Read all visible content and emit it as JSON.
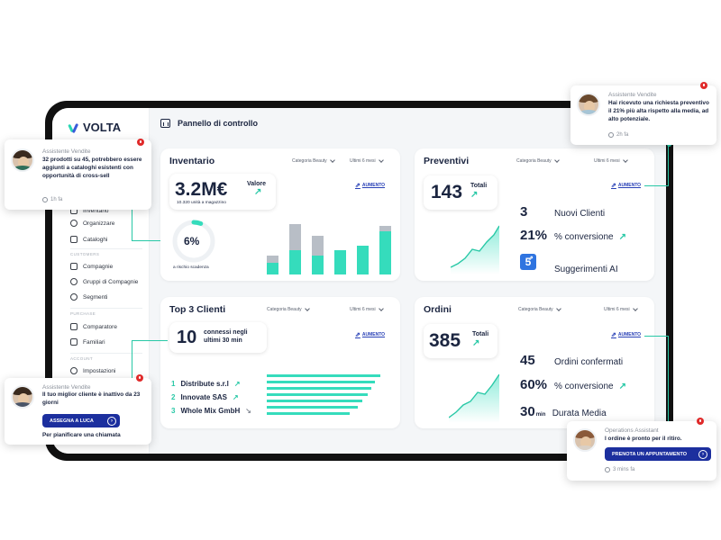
{
  "app": {
    "name": "VOLTA",
    "page_title": "Pannello di controllo"
  },
  "colors": {
    "accent": "#28c8a6",
    "brand_blue": "#1c2f9e",
    "link_blue": "#2840b6",
    "alert_red": "#e02a2a",
    "bar_grey": "#b8bec6"
  },
  "sidebar": {
    "items_top": [
      {
        "label": "Inventario",
        "icon": "box-icon"
      },
      {
        "label": "Organizzare",
        "icon": "people-icon"
      },
      {
        "label": "Cataloghi",
        "icon": "catalog-icon"
      }
    ],
    "group_customers": "CUSTOMERS",
    "items_customers": [
      {
        "label": "Compagnie",
        "icon": "building-icon"
      },
      {
        "label": "Gruppi di Compagnie",
        "icon": "group-icon"
      },
      {
        "label": "Segmenti",
        "icon": "segment-icon"
      }
    ],
    "group_purchase": "PURCHASE",
    "items_purchase": [
      {
        "label": "Comparatore",
        "icon": "compare-icon"
      },
      {
        "label": "Familiari",
        "icon": "family-icon"
      }
    ],
    "group_account": "ACCOUNT",
    "items_account": [
      {
        "label": "Impostazioni",
        "icon": "gear-icon"
      }
    ]
  },
  "inventario": {
    "title": "Inventario",
    "filter_category": "Categoria Beauty",
    "filter_period": "Ultimi 6 mesi",
    "value": "3.2M€",
    "value_label": "Valore",
    "units_label": "10.320 unità a magazzino",
    "trend_label": "AUMENTO",
    "risk_percent": "6%",
    "risk_fraction": 0.06,
    "risk_label": "a rischio scadenza",
    "bars": [
      {
        "total": 22,
        "teal": 13
      },
      {
        "total": 58,
        "teal": 28
      },
      {
        "total": 44,
        "teal": 22
      },
      {
        "total": 28,
        "teal": 28
      },
      {
        "total": 33,
        "teal": 33
      },
      {
        "total": 56,
        "teal": 50
      }
    ]
  },
  "preventivi": {
    "title": "Preventivi",
    "filter_category": "Categoria Beauty",
    "filter_period": "Ultimi 6 mesi",
    "total": "143",
    "total_label": "Totali",
    "trend_label": "AUMENTO",
    "metrics": [
      {
        "value": "3",
        "label": "Nuovi Clienti"
      },
      {
        "value": "21%",
        "label": "% conversione"
      },
      {
        "value": "5",
        "label": "Suggerimenti AI"
      }
    ]
  },
  "top_clienti": {
    "title": "Top 3 Clienti",
    "filter_category": "Categoria Beauty",
    "filter_period": "Ultimi 6 mesi",
    "connected_count": "10",
    "connected_label": "connessi negli ultimi 30 min",
    "trend_label": "AUMENTO",
    "clients": [
      {
        "rank": "1",
        "name": "Distribute s.r.l",
        "trend": "up"
      },
      {
        "rank": "2",
        "name": "Innovate SAS",
        "trend": "up"
      },
      {
        "rank": "3",
        "name": "Whole Mix GmbH",
        "trend": "down"
      }
    ],
    "bar_levels": [
      0.9,
      0.86,
      0.83,
      0.8,
      0.76,
      0.72,
      0.66
    ]
  },
  "ordini": {
    "title": "Ordini",
    "filter_category": "Categoria Beauty",
    "filter_period": "Ultimi 6 mesi",
    "total": "385",
    "total_label": "Totali",
    "trend_label": "AUMENTO",
    "metrics": [
      {
        "value": "45",
        "unit": "",
        "label": "Ordini confermati"
      },
      {
        "value": "60%",
        "unit": "",
        "label": "% conversione"
      },
      {
        "value": "30",
        "unit": "min",
        "label": "Durata Media"
      }
    ]
  },
  "notifications": {
    "left_top": {
      "sender": "Assistente Vendite",
      "message": "32 prodotti su 45, potrebbero essere aggiunti a cataloghi esistenti con opportunità di cross-sell",
      "time": "1h fa"
    },
    "right_top": {
      "sender": "Assistente Vendite",
      "message": "Hai ricevuto una richiesta preventivo il 21% più alta rispetto alla media, ad alto potenziale.",
      "time": "2h fa"
    },
    "left_bottom": {
      "sender": "Assistente Vendite",
      "message": "Il tuo miglior cliente è inattivo da 23 giorni",
      "cta": "ASSEGNA A LUCA",
      "footer": "Per pianificare una chiamata"
    },
    "right_bottom": {
      "sender": "Operations Assistant",
      "message": "l ordine è pronto per il ritiro.",
      "cta": "PRENOTA UN APPUNTAMENTO",
      "time": "3 mins fa"
    }
  }
}
